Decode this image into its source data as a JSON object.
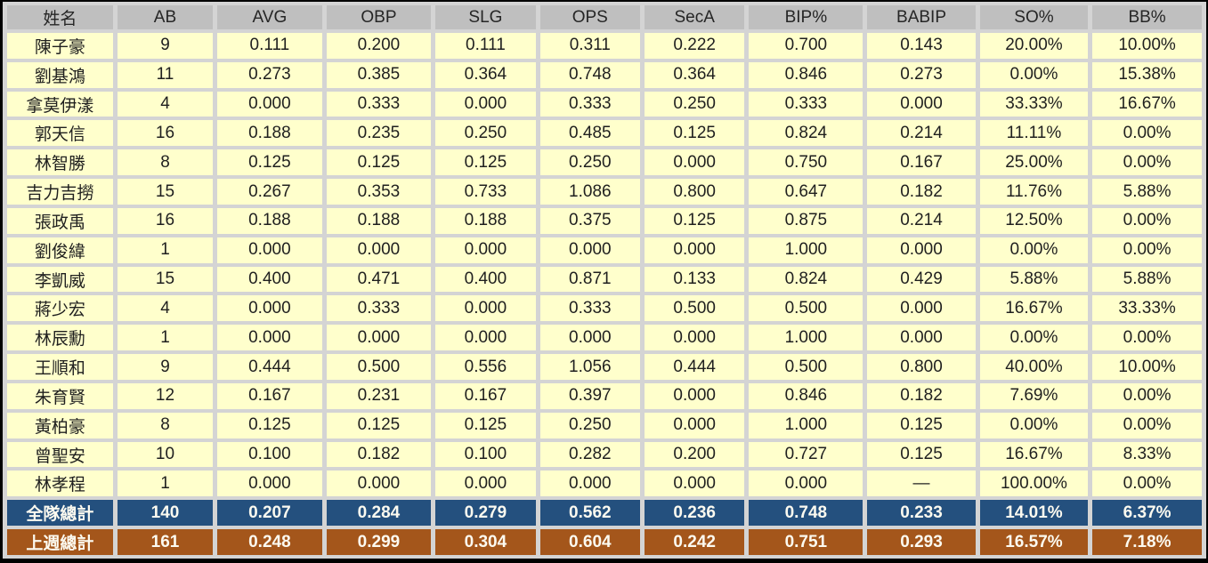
{
  "table": {
    "columns": [
      "姓名",
      "AB",
      "AVG",
      "OBP",
      "SLG",
      "OPS",
      "SecA",
      "BIP%",
      "BABIP",
      "SO%",
      "BB%"
    ],
    "column_widths_pct": [
      9.2,
      8.3,
      9.1,
      9.1,
      8.7,
      8.7,
      8.7,
      9.9,
      9.4,
      9.4,
      9.5
    ],
    "players": [
      {
        "name": "陳子豪",
        "values": [
          "9",
          "0.111",
          "0.200",
          "0.111",
          "0.311",
          "0.222",
          "0.700",
          "0.143",
          "20.00%",
          "10.00%"
        ]
      },
      {
        "name": "劉基鴻",
        "values": [
          "11",
          "0.273",
          "0.385",
          "0.364",
          "0.748",
          "0.364",
          "0.846",
          "0.273",
          "0.00%",
          "15.38%"
        ]
      },
      {
        "name": "拿莫伊漾",
        "values": [
          "4",
          "0.000",
          "0.333",
          "0.000",
          "0.333",
          "0.250",
          "0.333",
          "0.000",
          "33.33%",
          "16.67%"
        ]
      },
      {
        "name": "郭天信",
        "values": [
          "16",
          "0.188",
          "0.235",
          "0.250",
          "0.485",
          "0.125",
          "0.824",
          "0.214",
          "11.11%",
          "0.00%"
        ]
      },
      {
        "name": "林智勝",
        "values": [
          "8",
          "0.125",
          "0.125",
          "0.125",
          "0.250",
          "0.000",
          "0.750",
          "0.167",
          "25.00%",
          "0.00%"
        ]
      },
      {
        "name": "吉力吉撈",
        "values": [
          "15",
          "0.267",
          "0.353",
          "0.733",
          "1.086",
          "0.800",
          "0.647",
          "0.182",
          "11.76%",
          "5.88%"
        ]
      },
      {
        "name": "張政禹",
        "values": [
          "16",
          "0.188",
          "0.188",
          "0.188",
          "0.375",
          "0.125",
          "0.875",
          "0.214",
          "12.50%",
          "0.00%"
        ]
      },
      {
        "name": "劉俊緯",
        "values": [
          "1",
          "0.000",
          "0.000",
          "0.000",
          "0.000",
          "0.000",
          "1.000",
          "0.000",
          "0.00%",
          "0.00%"
        ]
      },
      {
        "name": "李凱威",
        "values": [
          "15",
          "0.400",
          "0.471",
          "0.400",
          "0.871",
          "0.133",
          "0.824",
          "0.429",
          "5.88%",
          "5.88%"
        ]
      },
      {
        "name": "蔣少宏",
        "values": [
          "4",
          "0.000",
          "0.333",
          "0.000",
          "0.333",
          "0.500",
          "0.500",
          "0.000",
          "16.67%",
          "33.33%"
        ]
      },
      {
        "name": "林辰勳",
        "values": [
          "1",
          "0.000",
          "0.000",
          "0.000",
          "0.000",
          "0.000",
          "1.000",
          "0.000",
          "0.00%",
          "0.00%"
        ]
      },
      {
        "name": "王順和",
        "values": [
          "9",
          "0.444",
          "0.500",
          "0.556",
          "1.056",
          "0.444",
          "0.500",
          "0.800",
          "40.00%",
          "10.00%"
        ]
      },
      {
        "name": "朱育賢",
        "values": [
          "12",
          "0.167",
          "0.231",
          "0.167",
          "0.397",
          "0.000",
          "0.846",
          "0.182",
          "7.69%",
          "0.00%"
        ]
      },
      {
        "name": "黃柏豪",
        "values": [
          "8",
          "0.125",
          "0.125",
          "0.125",
          "0.250",
          "0.000",
          "1.000",
          "0.125",
          "0.00%",
          "0.00%"
        ]
      },
      {
        "name": "曾聖安",
        "values": [
          "10",
          "0.100",
          "0.182",
          "0.100",
          "0.282",
          "0.200",
          "0.727",
          "0.125",
          "16.67%",
          "8.33%"
        ]
      },
      {
        "name": "林孝程",
        "values": [
          "1",
          "0.000",
          "0.000",
          "0.000",
          "0.000",
          "0.000",
          "0.000",
          "—",
          "100.00%",
          "0.00%"
        ]
      }
    ],
    "totals": [
      {
        "key": "team-total",
        "label": "全隊總計",
        "values": [
          "140",
          "0.207",
          "0.284",
          "0.279",
          "0.562",
          "0.236",
          "0.748",
          "0.233",
          "14.01%",
          "6.37%"
        ]
      },
      {
        "key": "last-week-total",
        "label": "上週總計",
        "values": [
          "161",
          "0.248",
          "0.299",
          "0.304",
          "0.604",
          "0.242",
          "0.751",
          "0.293",
          "16.57%",
          "7.18%"
        ]
      }
    ]
  },
  "colors": {
    "header_bg": "#BFBFBF",
    "cell_bg": "#FFFFCC",
    "team_total_bg": "#24507E",
    "last_week_bg": "#A4561B",
    "gridline": "#D4D4D4",
    "outer_border": "#000000",
    "total_text": "#FCFAF0"
  }
}
